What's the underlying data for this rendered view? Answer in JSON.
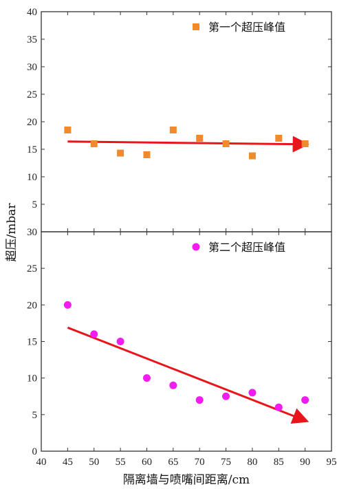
{
  "chart_data": [
    {
      "type": "scatter",
      "panel": "top",
      "ylim": [
        0,
        40
      ],
      "yticks": [
        5,
        10,
        15,
        20,
        25,
        30,
        35,
        40
      ],
      "series": [
        {
          "name": "第一个超压峰值",
          "marker": "square",
          "color": "#F08A2C",
          "x": [
            45,
            50,
            55,
            60,
            65,
            70,
            75,
            80,
            85,
            90
          ],
          "y": [
            18.5,
            16.0,
            14.3,
            14.0,
            18.5,
            17.0,
            16.0,
            13.8,
            17.0,
            16.0
          ]
        }
      ],
      "trend_arrow": {
        "color": "#E8151B",
        "from": [
          45,
          16.4
        ],
        "to": [
          90,
          15.9
        ]
      }
    },
    {
      "type": "scatter",
      "panel": "bottom",
      "ylim": [
        0,
        30
      ],
      "yticks": [
        0,
        5,
        10,
        15,
        20,
        25,
        30
      ],
      "series": [
        {
          "name": "第二个超压峰值",
          "marker": "circle",
          "color": "#F01CF0",
          "x": [
            45,
            50,
            55,
            60,
            65,
            70,
            75,
            80,
            85,
            90
          ],
          "y": [
            20,
            16,
            15,
            10,
            9,
            7,
            7.5,
            8,
            6,
            7
          ]
        }
      ],
      "trend_arrow": {
        "color": "#E8151B",
        "from": [
          45,
          16.9
        ],
        "to": [
          90,
          4.2
        ]
      }
    }
  ],
  "shared": {
    "xlabel": "隔离墙与喷嘴间距离/cm",
    "ylabel": "超压/mbar",
    "xlim": [
      40,
      95
    ],
    "xticks": [
      40,
      45,
      50,
      55,
      60,
      65,
      70,
      75,
      80,
      85,
      90,
      95
    ],
    "grid": false,
    "legend_position": "top-right"
  }
}
